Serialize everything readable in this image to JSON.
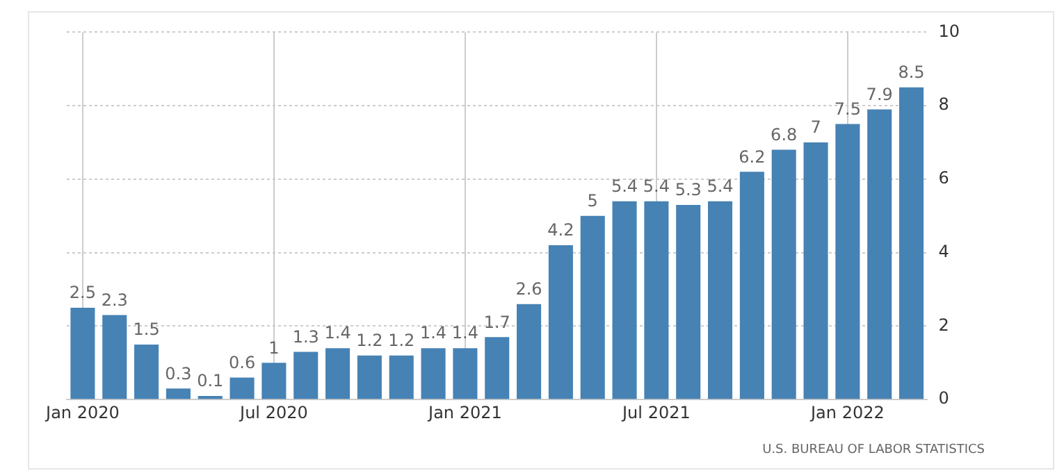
{
  "chart_data": {
    "type": "bar",
    "categories": [
      "Jan 2020",
      null,
      null,
      null,
      null,
      null,
      "Jul 2020",
      null,
      null,
      null,
      null,
      null,
      "Jan 2021",
      null,
      null,
      null,
      null,
      null,
      "Jul 2021",
      null,
      null,
      null,
      null,
      null,
      "Jan 2022",
      null,
      null
    ],
    "values": [
      2.5,
      2.3,
      1.5,
      0.3,
      0.1,
      0.6,
      1,
      1.3,
      1.4,
      1.2,
      1.2,
      1.4,
      1.4,
      1.7,
      2.6,
      4.2,
      5,
      5.4,
      5.4,
      5.3,
      5.4,
      6.2,
      6.8,
      7,
      7.5,
      7.9,
      8.5
    ],
    "color": "#4682b4",
    "ylim": [
      0,
      10
    ],
    "yticks": [
      0,
      2,
      4,
      6,
      8,
      10
    ],
    "grid": true,
    "legend": false,
    "data_labels": true,
    "annotations": [
      "U.S. BUREAU OF LABOR STATISTICS"
    ]
  }
}
